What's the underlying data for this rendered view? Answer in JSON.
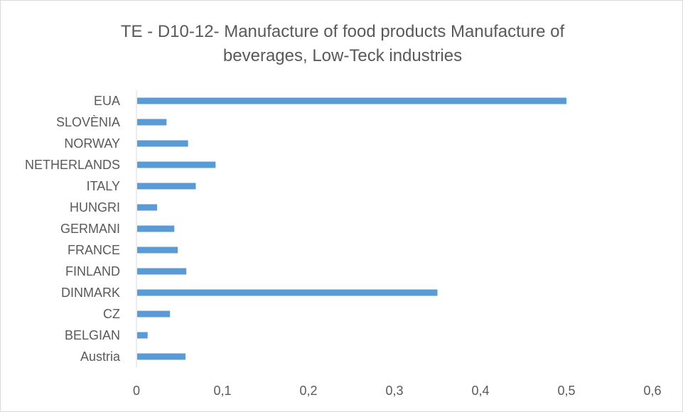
{
  "chart_data": {
    "type": "bar",
    "orientation": "horizontal",
    "title_lines": [
      "TE - D10-12-  Manufacture of food products Manufacture of",
      "beverages, Low-Teck industries"
    ],
    "categories": [
      "EUA",
      "SLOVÈNIA",
      "NORWAY",
      "NETHERLANDS",
      "ITALY",
      "HUNGRI",
      "GERMANI",
      "FRANCE",
      "FINLAND",
      "DINMARK",
      "CZ",
      "BELGIAN",
      "Austria"
    ],
    "values": [
      0.5,
      0.035,
      0.06,
      0.092,
      0.069,
      0.024,
      0.044,
      0.048,
      0.058,
      0.35,
      0.039,
      0.013,
      0.057
    ],
    "xlim": [
      0,
      0.6
    ],
    "x_ticks": [
      0,
      0.1,
      0.2,
      0.3,
      0.4,
      0.5,
      0.6
    ],
    "x_tick_labels": [
      "0",
      "0,1",
      "0,2",
      "0,3",
      "0,4",
      "0,5",
      "0,6"
    ],
    "bar_color": "#5b9bd5",
    "text_color": "#595959",
    "axis_color": "#d9d9d9",
    "grid": false,
    "legend": "none"
  }
}
